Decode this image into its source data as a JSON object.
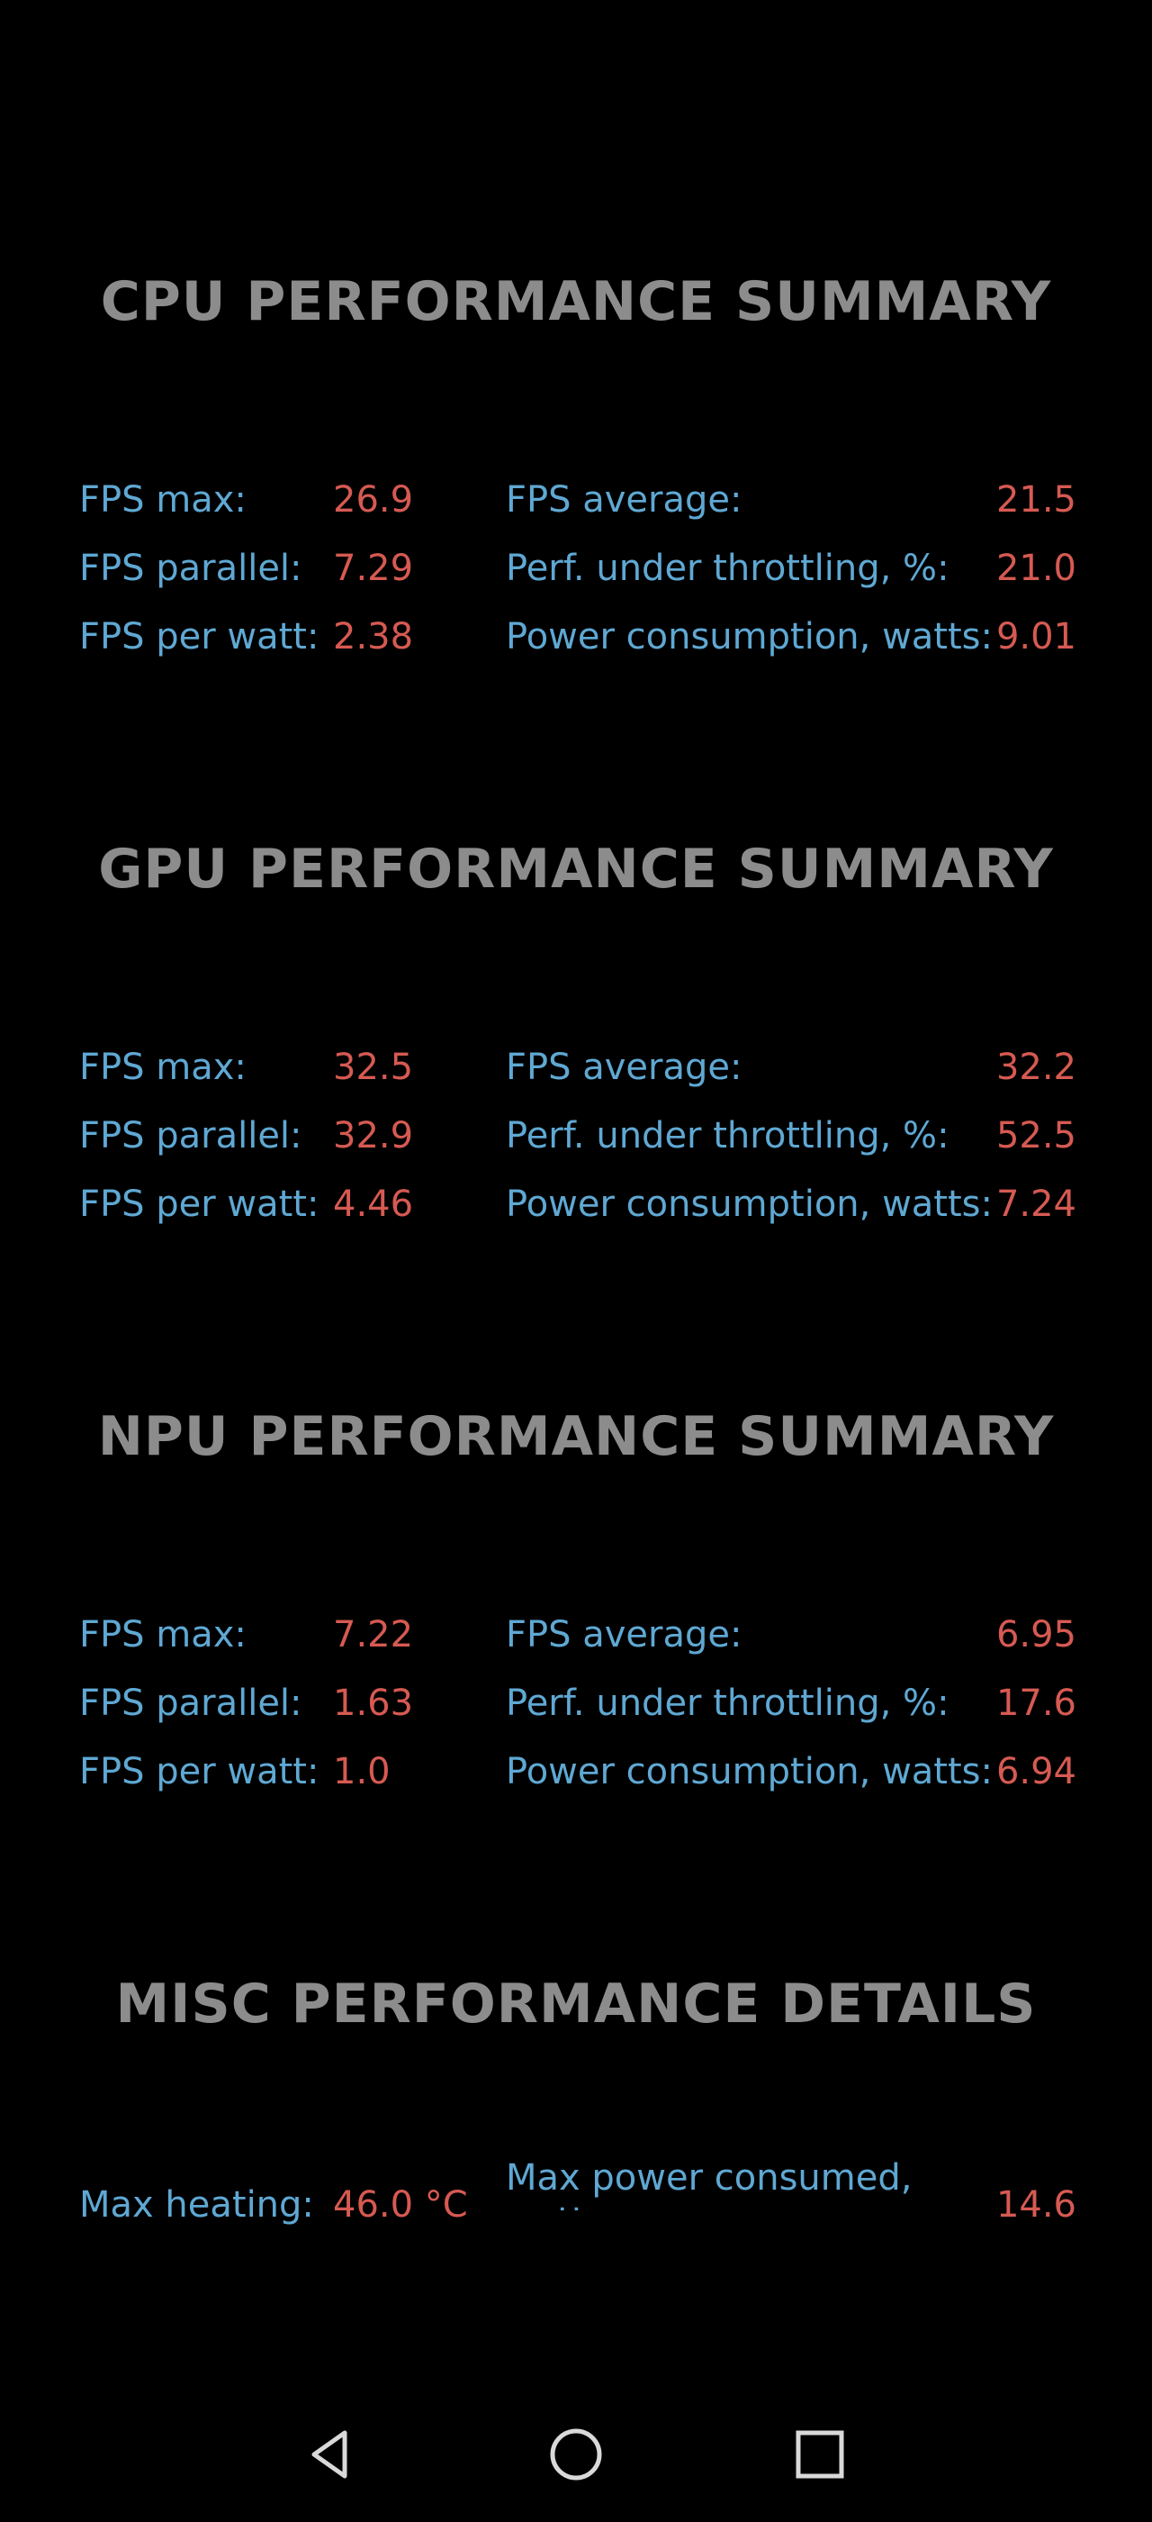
{
  "sections": [
    {
      "title": "CPU PERFORMANCE SUMMARY",
      "rows": [
        {
          "label1": "FPS max:",
          "value1": "26.9",
          "label2": "FPS average:",
          "value2": "21.5"
        },
        {
          "label1": "FPS parallel:",
          "value1": "7.29",
          "label2": "Perf. under throttling, %:",
          "value2": "21.0"
        },
        {
          "label1": "FPS per watt:",
          "value1": "2.38",
          "label2": "Power consumption, watts:",
          "value2": "9.01"
        }
      ]
    },
    {
      "title": "GPU PERFORMANCE SUMMARY",
      "rows": [
        {
          "label1": "FPS max:",
          "value1": "32.5",
          "label2": "FPS average:",
          "value2": "32.2"
        },
        {
          "label1": "FPS parallel:",
          "value1": "32.9",
          "label2": "Perf. under throttling, %:",
          "value2": "52.5"
        },
        {
          "label1": "FPS per watt:",
          "value1": "4.46",
          "label2": "Power consumption, watts:",
          "value2": "7.24"
        }
      ]
    },
    {
      "title": "NPU PERFORMANCE SUMMARY",
      "rows": [
        {
          "label1": "FPS max:",
          "value1": "7.22",
          "label2": "FPS average:",
          "value2": "6.95"
        },
        {
          "label1": "FPS parallel:",
          "value1": "1.63",
          "label2": "Perf. under throttling, %:",
          "value2": "17.6"
        },
        {
          "label1": "FPS per watt:",
          "value1": "1.0",
          "label2": "Power consumption, watts:",
          "value2": "6.94"
        }
      ]
    }
  ],
  "misc": {
    "title": "MISC PERFORMANCE DETAILS",
    "max_heating_label": "Max heating:",
    "max_heating_value": "46.0 °C",
    "max_power_label": "Max power consumed, watts:",
    "max_power_value": "14.6"
  },
  "navbar": {
    "back": "back-icon",
    "home": "home-icon",
    "recents": "recents-icon"
  },
  "colors": {
    "background": "#000000",
    "title": "#8c8c8c",
    "label": "#5fa8d3",
    "value": "#d65a52",
    "nav_icon": "#d9d9d9"
  }
}
